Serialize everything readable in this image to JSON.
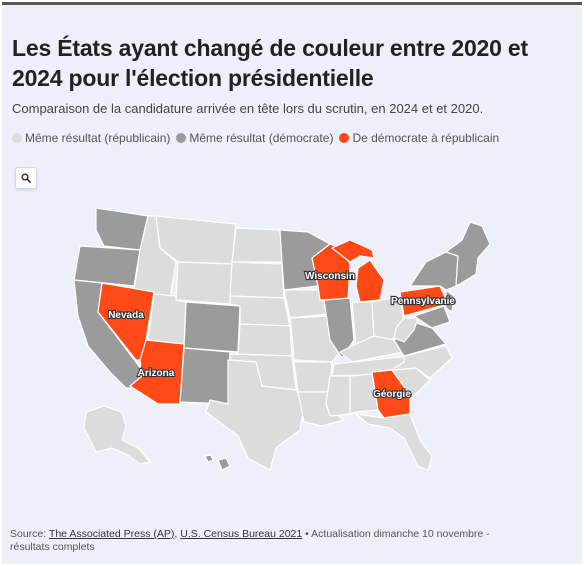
{
  "title": "Les États ayant changé de couleur entre 2020 et 2024 pour l'élection présidentielle",
  "subtitle": "Comparaison de la candidature arrivée en tête lors du scrutin, en 2024 et et 2020.",
  "legend": [
    {
      "label": "Même résultat (républicain)",
      "color": "#dcdcdc"
    },
    {
      "label": "Même résultat (démocrate)",
      "color": "#9b9b9b"
    },
    {
      "label": "De démocrate à républicain",
      "color": "#ff4a17"
    }
  ],
  "zoom_icon": "search-icon",
  "states": {
    "flipped": [
      "Nevada",
      "Arizona",
      "Wisconsin",
      "Michigan",
      "Pennsylvanie",
      "Géorgie"
    ],
    "labels": {
      "nevada": "Nevada",
      "arizona": "Arizona",
      "wisconsin": "Wisconsin",
      "pennsylvania": "Pennsylvanie",
      "georgia": "Géorgie"
    }
  },
  "source": {
    "prefix": "Source: ",
    "link1": "The Associated Press (AP)",
    "sep": ", ",
    "link2": "U.S. Census Bureau 2021",
    "suffix": " • Actualisation dimanche 10 novembre - résultats complets"
  }
}
